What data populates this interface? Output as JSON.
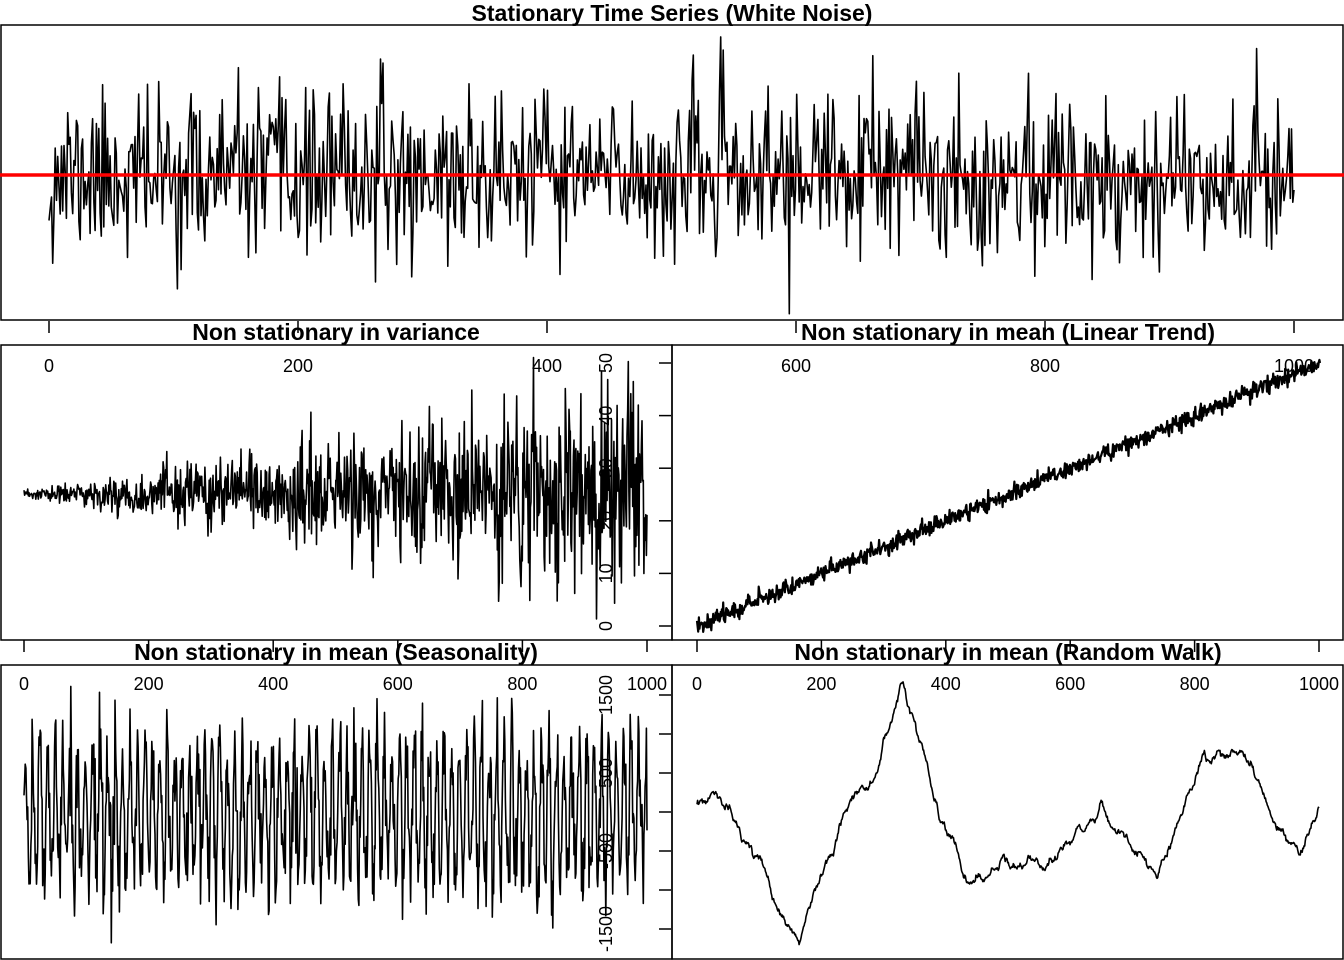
{
  "chart_data": {
    "type": "line",
    "panels": [
      {
        "id": "white-noise",
        "title": "Stationary Time Series (White Noise)",
        "model": {
          "kind": "white_noise",
          "n": 1000,
          "mean": 0,
          "sd": 1,
          "seed": 11
        },
        "hline": {
          "value": 0,
          "color": "#ff0000"
        },
        "xticks": [
          0,
          200,
          400,
          600,
          800,
          1000
        ],
        "xlim": [
          1,
          1000
        ],
        "ylim": [
          -3.4,
          3.6
        ]
      },
      {
        "id": "variance",
        "title": "Non stationary in variance",
        "model": {
          "kind": "growing_variance",
          "n": 1000,
          "mean": 25,
          "sd_start": 0.4,
          "sd_end": 9.5,
          "seed": 23
        },
        "xlim": [
          1,
          1000
        ]
      },
      {
        "id": "linear-trend",
        "title": "Non stationary in mean (Linear Trend)",
        "model": {
          "kind": "linear_trend",
          "n": 1000,
          "intercept": 0,
          "slope": 0.05,
          "sd": 0.8,
          "seed": 37
        },
        "yticks": [
          0,
          10,
          20,
          30,
          40,
          50
        ],
        "xlim": [
          1,
          1000
        ],
        "ylim": [
          0,
          50
        ]
      },
      {
        "id": "seasonality",
        "title": "Non stationary in mean (Seasonality)",
        "model": {
          "kind": "seasonal",
          "n": 1000,
          "amplitude": 800,
          "period": 12,
          "sd": 330,
          "seed": 41
        },
        "xticks": [
          0,
          200,
          400,
          600,
          800,
          1000
        ],
        "xlim": [
          1,
          1000
        ]
      },
      {
        "id": "random-walk",
        "title": "Non stationary in mean (Random Walk)",
        "model": {
          "kind": "random_walk",
          "n": 1000,
          "step_sd": 45,
          "seed": 53,
          "path_anchors": [
            [
              0,
              100
            ],
            [
              30,
              250
            ],
            [
              60,
              -100
            ],
            [
              100,
              -600
            ],
            [
              130,
              -1250
            ],
            [
              165,
              -1700
            ],
            [
              200,
              -800
            ],
            [
              250,
              200
            ],
            [
              290,
              500
            ],
            [
              330,
              1650
            ],
            [
              360,
              900
            ],
            [
              390,
              -100
            ],
            [
              440,
              -900
            ],
            [
              500,
              -650
            ],
            [
              560,
              -750
            ],
            [
              620,
              -250
            ],
            [
              650,
              150
            ],
            [
              700,
              -500
            ],
            [
              740,
              -850
            ],
            [
              800,
              350
            ],
            [
              860,
              800
            ],
            [
              885,
              650
            ],
            [
              930,
              -150
            ],
            [
              970,
              -550
            ],
            [
              1000,
              50
            ]
          ]
        },
        "xticks": [
          0,
          200,
          400,
          600,
          800,
          1000
        ],
        "yticks": [
          -1500,
          -1000,
          -500,
          0,
          500,
          1000,
          1500
        ],
        "ytick_labels": [
          "-1500",
          "",
          "-500",
          "",
          "500",
          "",
          "1500"
        ],
        "xlim": [
          1,
          1000
        ],
        "ylim": [
          -1500,
          1500
        ]
      }
    ]
  }
}
